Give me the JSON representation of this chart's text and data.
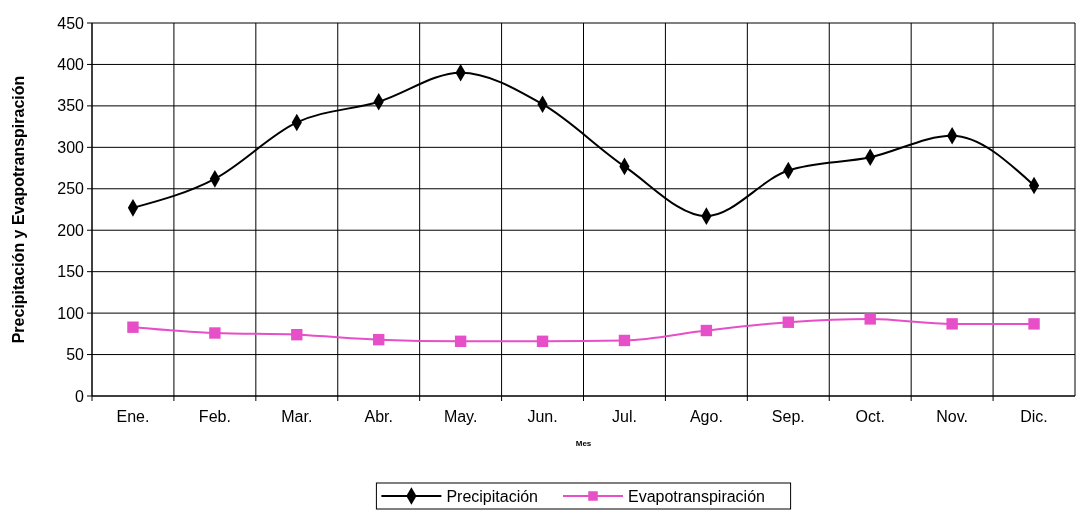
{
  "chart_data": {
    "type": "line",
    "xlabel": "Mes",
    "ylabel": "Precipitación y Evapotranspiración",
    "categories": [
      "Ene.",
      "Feb.",
      "Mar.",
      "Abr.",
      "May.",
      "Jun.",
      "Jul.",
      "Ago.",
      "Sep.",
      "Oct.",
      "Nov.",
      "Dic."
    ],
    "series": [
      {
        "name": "Precipitación",
        "color": "#000000",
        "marker": "diamond",
        "values": [
          227,
          262,
          330,
          355,
          390,
          352,
          277,
          217,
          272,
          288,
          314,
          254
        ]
      },
      {
        "name": "Evapotranspiración",
        "color": "#e64fc8",
        "marker": "square",
        "values": [
          83,
          76,
          74,
          68,
          66,
          66,
          67,
          79,
          89,
          93,
          87,
          87
        ]
      }
    ],
    "ylim": [
      0,
      450
    ],
    "yticks": [
      0,
      50,
      100,
      150,
      200,
      250,
      300,
      350,
      400,
      450
    ],
    "grid": true,
    "legend": "bottom"
  }
}
